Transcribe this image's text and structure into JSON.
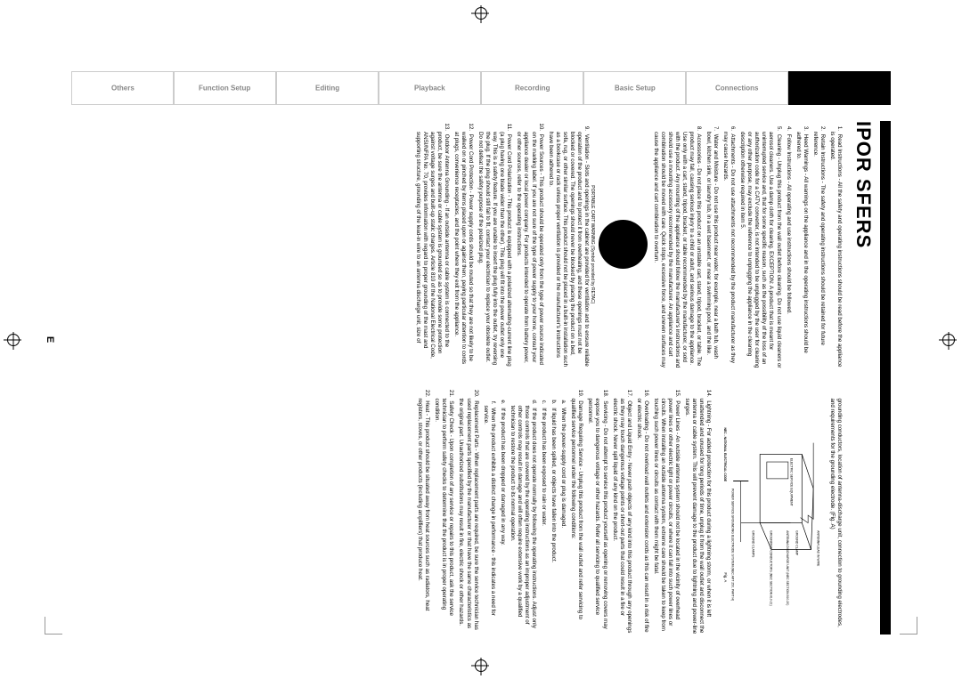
{
  "title": "IPOR SFERS",
  "page_number": "E",
  "tabs": [
    {
      "label": "",
      "active": true
    },
    {
      "label": "Connections",
      "active": false
    },
    {
      "label": "Basic Setup",
      "active": false
    },
    {
      "label": "Recording",
      "active": false
    },
    {
      "label": "Playback",
      "active": false
    },
    {
      "label": "Editing",
      "active": false
    },
    {
      "label": "Function Setup",
      "active": false
    },
    {
      "label": "Others",
      "active": false
    }
  ],
  "instructions": [
    {
      "n": "1.",
      "t": "Read Instructions - All the safety and operating instructions should be read before the appliance is operated."
    },
    {
      "n": "2.",
      "t": "Retain Instructions - The safety and operating instructions should be retained for future reference."
    },
    {
      "n": "3.",
      "t": "Heed Warnings - All warnings on the appliance and in the operating instructions should be adhered to."
    },
    {
      "n": "4.",
      "t": "Follow Instructions - All operating and use instructions should be followed."
    },
    {
      "n": "5.",
      "t": "Cleaning - Unplug this product from the wall outlet before cleaning. Do not use liquid cleaners or aerosol cleaners. Use a damp cloth for cleaning. EXCEPTION: A product that is meant for uninterrupted service and, that for some specific reason, such as the possibility of the loss of an authorization code for a CATV converter, is not intended to be unplugged by the user for cleaning or any other purpose, may exclude the reference to unplugging the appliance in the cleaning description otherwise required in item 5."
    },
    {
      "n": "6.",
      "t": "Attachments - Do not use attachments not recommended by the product manufacturer as they may cause hazards."
    },
    {
      "n": "7.",
      "t": "Water and Moisture - Do not use this product near water, for example, near a bath tub, wash bowl, kitchen sink, or laundry tub, in a wet basement, or near a swimming pool, and the like."
    },
    {
      "n": "8.",
      "t": "Accessories - Do not place this product on an unstable cart, stand, tripod, bracket, or table. The product may fall, causing serious injury to a child or adult, and serious damage to the appliance. Use only with a cart, stand, tripod, bracket, or table recommended by the manufacturer, or sold with the product. Any mounting of the appliance should follow the manufacturer's instructions and should use a mounting accessory recommended by the manufacturer. An appliance and cart combination should be moved with care. Quick stops, excessive force, and uneven surfaces may cause the appliance and cart combination to overturn."
    },
    {
      "n": "9.",
      "t": "Ventilation - Slots and openings in the cabinet are provided for ventilation and to ensure reliable operation of the product and to protect it from overheating, and these openings must not be blocked or covered. The openings should never be blocked by placing the product on a bed, sofa, rug, or other similar surface. This product should not be placed in a built-in installation such as a bookcase or rack unless proper ventilation is provided or the manufacturer's instructions have been adhered to."
    },
    {
      "n": "10.",
      "t": "Power Sources - This product should be operated only from the type of power source indicated on the marking label. If you are not sure of the type of power supply to your home, consult your appliance dealer or local power company. For products intended to operate from battery power, or other sources, refer to the operating instructions."
    },
    {
      "n": "11.",
      "t": "Power Cord Polarization - This product is equipped with a polarized alternating-current line plug (a plug having one blade wider than the other). This plug will fit into the power outlet only one way. This is a safety feature. If you are unable to insert the plug fully into the outlet, try reversing the plug. If the plug should still fail to fit, contact your electrician to replace your obsolete outlet. Do not defeat the safety purpose of the polarized plug."
    },
    {
      "n": "12.",
      "t": "Power Cord Protection - Power supply cords should be routed so that they are not likely to be walked on or pinched by items placed upon or against them, paying particular attention to cords at plugs, convenience receptacles, and the point where they exit from the appliance."
    },
    {
      "n": "13.",
      "t": "Outdoor Antenna Grounding - If an outside antenna or cable system is connected to the product, be sure the antenna or cable system is grounded so as to provide some protection against voltage surges and built-up static charges. Article 810 of the National Electrical Code, ANSI/NFPA No. 70, provides information with regard to proper grounding of the mast and supporting structure, grounding of the lead-in wire to an antenna discharge unit, size of grounding conductors, location of antenna-discharge unit, connection to grounding electrodes, and requirements for the grounding electrode. (Fig. A)"
    },
    {
      "n": "14.",
      "t": "Lightning - For added protection for this product during a lightning storm, or when it is left unattended and unused for long periods of time, unplug it from the wall outlet and disconnect the antenna or cable system. This will prevent damage to the product due to lightning and power-line surges."
    },
    {
      "n": "15.",
      "t": "Power Lines - An outside antenna system should not be located in the vicinity of overhead power lines or other electric light or power circuits, or where it can fall into such power lines or circuits. When installing an outside antenna system, extreme care should be taken to keep from touching such power lines or circuits as contact with them might be fatal."
    },
    {
      "n": "16.",
      "t": "Overloading - Do not overload wall outlets and extension cords as this can result in a risk of fire or electric shock."
    },
    {
      "n": "17.",
      "t": "Object and Liquid Entry - Never push objects of any kind into this product through any openings as they may touch dangerous voltage points or short-out parts that could result in a fire or electric shock. Never spill liquid of any kind on the product."
    },
    {
      "n": "18.",
      "t": "Servicing - Do not attempt to service this product yourself as opening or removing covers may expose you to dangerous voltage or other hazards. Refer all servicing to qualified service personnel."
    },
    {
      "n": "19.",
      "t": "Damage Requiring Service - Unplug this product from the wall outlet and refer servicing to qualified service personnel under the following conditions:"
    }
  ],
  "sub_items": [
    {
      "n": "a.",
      "t": "When the power-supply cord or plug is damaged."
    },
    {
      "n": "b.",
      "t": "If liquid has been spilled, or objects have fallen into the product."
    },
    {
      "n": "c.",
      "t": "If the product has been exposed to rain or water."
    },
    {
      "n": "d.",
      "t": "If the product does not operate normally by following the operating instructions. Adjust only those controls that are covered by the operating instructions as an improper adjustment of other controls may result in damage and will often require extensive work by a qualified technician to restore the product to its normal operation."
    },
    {
      "n": "e.",
      "t": "If the product has been dropped or damaged in any way."
    },
    {
      "n": "f.",
      "t": "When the product exhibits a distinct change in performance - this indicates a need for service."
    }
  ],
  "instructions2": [
    {
      "n": "20.",
      "t": "Replacement Parts - When replacement parts are required, be sure the service technician has used replacement parts specified by the manufacturer or that have the same characteristics as the original part. Unauthorized substitutions may result in fire, electric shock or other hazards."
    },
    {
      "n": "21.",
      "t": "Safety Check - Upon completion of any service or repairs to this product, ask the service technician to perform safety checks to determine that the product is in proper operating condition."
    },
    {
      "n": "22.",
      "t": "Heat - This product should be situated away from heat sources such as radiators, heat registers, stoves, or other products (including amplifiers) that produce heat."
    }
  ],
  "diagram_caption": "PORTABLE CART WARNING (Symbol provided by RETAC)",
  "diagram_labels": {
    "lead": "ANTENNA LEAD IN WIRE",
    "clamp": "GROUND CLAMP",
    "discharge": "ANTENNA DISCHARGE UNIT (NEC SECTION 810-20)",
    "conductors": "GROUNDING CONDUCTORS (NEC SECTION 810-21)",
    "clamps": "GROUND CLAMPS",
    "service": "ELECTRIC SERVICE EQUIPMENT",
    "electrode": "POWER SERVICE GROUNDING ELECTRODE SYSTEM (NEC ART 250, PART H)",
    "nec": "NEC - NATIONAL ELECTRICAL CODE",
    "fig": "Fig. A"
  },
  "colors": {
    "text": "#000000",
    "bg": "#ffffff",
    "tab_inactive_text": "#888888",
    "tab_border": "#cccccc"
  }
}
